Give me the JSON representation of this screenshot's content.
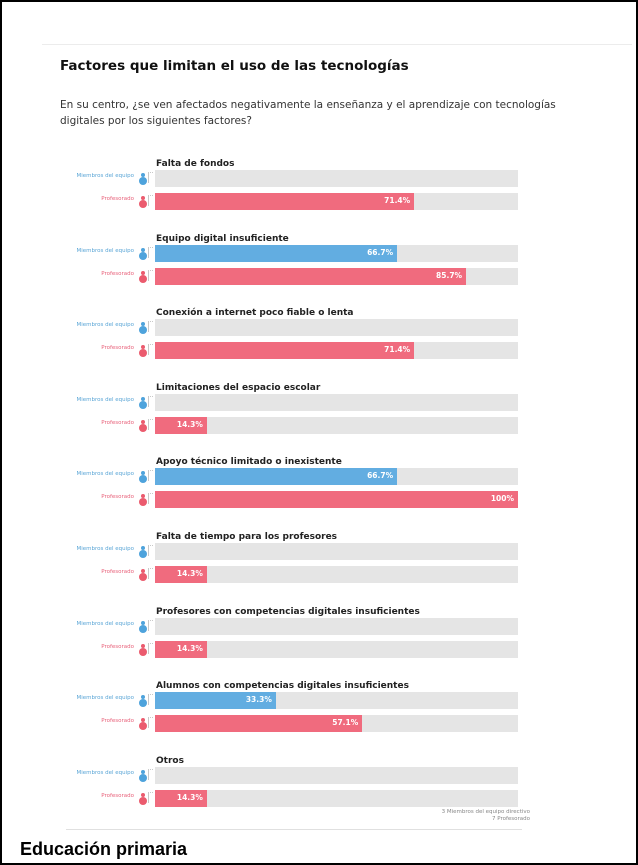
{
  "title": "Factores que limitan el uso de las tecnologías",
  "question": "En su centro, ¿se ven afectados negativamente la enseñanza y el aprendizaje con tecnologías digitales por los siguientes factores?",
  "legend": {
    "series_a": "Miembros del equipo",
    "series_b": "Profesorado",
    "icon_a": "person-blue-icon",
    "icon_b": "person-red-icon"
  },
  "colors": {
    "series_a": "#62ade1",
    "series_b": "#f06b7e",
    "track": "#e5e5e5"
  },
  "footnote": {
    "line1": "3 Miembros del equipo directivo",
    "line2": "7 Profesorado"
  },
  "caption": "Educación primaria",
  "chart_data": {
    "type": "bar",
    "orientation": "horizontal",
    "xlim": [
      0,
      100
    ],
    "unit": "%",
    "categories": [
      "Falta de fondos",
      "Equipo digital insuficiente",
      "Conexión a internet poco fiable o lenta",
      "Limitaciones del espacio escolar",
      "Apoyo técnico limitado o inexistente",
      "Falta de tiempo para los profesores",
      "Profesores con competencias digitales insuficientes",
      "Alumnos con competencias digitales insuficientes",
      "Otros"
    ],
    "series": [
      {
        "name": "Miembros del equipo",
        "values": [
          0,
          66.7,
          0,
          0,
          66.7,
          0,
          0,
          33.3,
          0
        ],
        "labels": [
          "",
          "66.7%",
          "",
          "",
          "66.7%",
          "",
          "",
          "33.3%",
          ""
        ]
      },
      {
        "name": "Profesorado",
        "values": [
          71.4,
          85.7,
          71.4,
          14.3,
          100,
          14.3,
          14.3,
          57.1,
          14.3
        ],
        "labels": [
          "71.4%",
          "85.7%",
          "71.4%",
          "14.3%",
          "100%",
          "14.3%",
          "14.3%",
          "57.1%",
          "14.3%"
        ]
      }
    ]
  }
}
